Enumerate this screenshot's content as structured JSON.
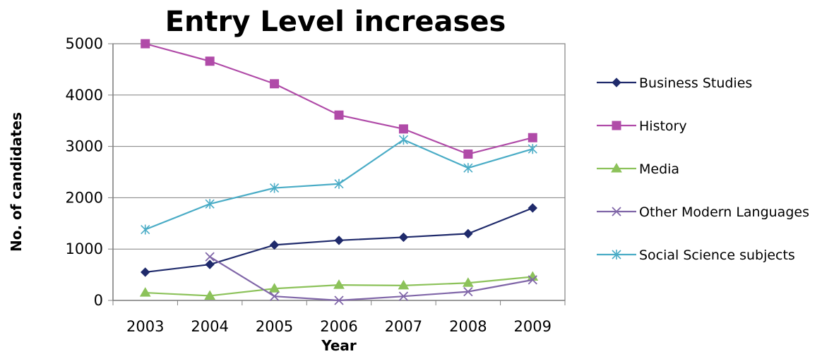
{
  "chart_data": {
    "type": "line",
    "title": "Entry Level increases",
    "xlabel": "Year",
    "ylabel": "No. of candidates",
    "categories": [
      "2003",
      "2004",
      "2005",
      "2006",
      "2007",
      "2008",
      "2009"
    ],
    "ylim": [
      0,
      5000
    ],
    "yticks": [
      "0",
      "1000",
      "2000",
      "3000",
      "4000",
      "5000"
    ],
    "grid": "horizontal",
    "legend_position": "right",
    "series": [
      {
        "name": "Business Studies",
        "color": "#1F2A6B",
        "marker": "diamond",
        "values": [
          550,
          700,
          1080,
          1170,
          1230,
          1300,
          1800
        ]
      },
      {
        "name": "History",
        "color": "#B04BA8",
        "marker": "square",
        "values": [
          5000,
          4660,
          4220,
          3610,
          3340,
          2850,
          3170
        ]
      },
      {
        "name": "Media",
        "color": "#8CC25A",
        "marker": "triangle",
        "values": [
          150,
          90,
          230,
          300,
          290,
          340,
          460
        ]
      },
      {
        "name": "Other Modern Languages",
        "color": "#8066A8",
        "marker": "x",
        "values": [
          null,
          850,
          80,
          0,
          80,
          170,
          400
        ]
      },
      {
        "name": "Social Science subjects",
        "color": "#4AACC6",
        "marker": "star",
        "values": [
          1380,
          1880,
          2190,
          2270,
          3130,
          2580,
          2950
        ]
      }
    ]
  }
}
